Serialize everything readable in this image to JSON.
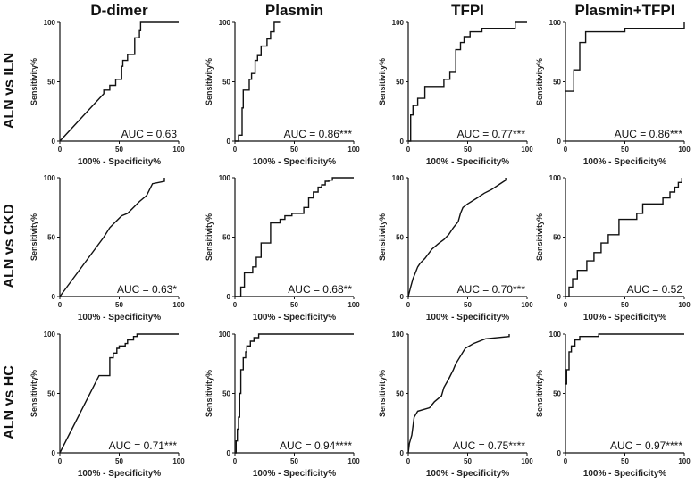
{
  "chart_data": [
    {
      "type": "line",
      "row": "ALN vs ILN",
      "column": "D-dimer",
      "xlabel": "100% - Specificity%",
      "ylabel": "Sensitivity%",
      "xlim": [
        0,
        100
      ],
      "ylim": [
        0,
        100
      ],
      "xticks": [
        "0",
        "50",
        "100"
      ],
      "yticks": [
        "0",
        "50",
        "100"
      ],
      "auc_label": "AUC = 0.63",
      "x": [
        0,
        37,
        37,
        42,
        42,
        47,
        47,
        52,
        52,
        53,
        53,
        57,
        57,
        63,
        63,
        67,
        67,
        68,
        68,
        100
      ],
      "y": [
        0,
        40,
        43,
        43,
        47,
        47,
        52,
        52,
        63,
        63,
        68,
        68,
        73,
        73,
        87,
        87,
        93,
        93,
        100,
        100
      ]
    },
    {
      "type": "line",
      "row": "ALN vs ILN",
      "column": "Plasmin",
      "xlabel": "100% - Specificity%",
      "ylabel": "Sensitivity%",
      "xlim": [
        0,
        100
      ],
      "ylim": [
        0,
        100
      ],
      "xticks": [
        "0",
        "50",
        "100"
      ],
      "yticks": [
        "0",
        "50",
        "100"
      ],
      "auc_label": "AUC = 0.86***",
      "x": [
        0,
        3,
        3,
        6,
        6,
        7,
        7,
        12,
        12,
        14,
        14,
        17,
        17,
        19,
        19,
        22,
        22,
        27,
        27,
        30,
        30,
        33,
        33,
        38
      ],
      "y": [
        0,
        0,
        5,
        5,
        28,
        28,
        43,
        43,
        52,
        52,
        57,
        57,
        68,
        68,
        72,
        72,
        80,
        80,
        86,
        86,
        92,
        92,
        100,
        100
      ]
    },
    {
      "type": "line",
      "row": "ALN vs ILN",
      "column": "TFPI",
      "xlabel": "100% - Specificity%",
      "ylabel": "Sensitivity%",
      "xlim": [
        0,
        100
      ],
      "ylim": [
        0,
        100
      ],
      "xticks": [
        "0",
        "50",
        "100"
      ],
      "yticks": [
        "0",
        "50",
        "100"
      ],
      "auc_label": "AUC = 0.77***",
      "x": [
        0,
        2,
        2,
        4,
        4,
        8,
        8,
        14,
        14,
        30,
        30,
        35,
        35,
        40,
        40,
        44,
        44,
        47,
        47,
        52,
        52,
        62,
        62,
        90,
        90,
        100
      ],
      "y": [
        0,
        0,
        22,
        22,
        30,
        30,
        36,
        36,
        46,
        46,
        52,
        52,
        58,
        58,
        77,
        77,
        83,
        83,
        88,
        88,
        92,
        92,
        95,
        95,
        100,
        100
      ]
    },
    {
      "type": "line",
      "row": "ALN vs ILN",
      "column": "Plasmin+TFPI",
      "xlabel": "100% - Specificity%",
      "ylabel": "Sensitivity%",
      "xlim": [
        0,
        100
      ],
      "ylim": [
        0,
        100
      ],
      "xticks": [
        "0",
        "50",
        "100"
      ],
      "yticks": [
        "0",
        "50",
        "100"
      ],
      "auc_label": "AUC = 0.86***",
      "x": [
        0,
        7,
        7,
        12,
        12,
        17,
        17,
        50,
        50,
        100,
        100
      ],
      "y": [
        42,
        42,
        60,
        60,
        83,
        83,
        92,
        92,
        95,
        95,
        100
      ]
    },
    {
      "type": "line",
      "row": "ALN vs CKD",
      "column": "D-dimer",
      "xlabel": "100% - Specificity%",
      "ylabel": "Sensitivity%",
      "xlim": [
        0,
        100
      ],
      "ylim": [
        0,
        100
      ],
      "xticks": [
        "0",
        "50",
        "100"
      ],
      "yticks": [
        "0",
        "50",
        "100"
      ],
      "auc_label": "AUC = 0.63*",
      "x": [
        0,
        37,
        37,
        42,
        42,
        47,
        47,
        52,
        52,
        57,
        57,
        62,
        62,
        67,
        67,
        73,
        73,
        78,
        78,
        88,
        88
      ],
      "y": [
        0,
        50,
        50,
        58,
        58,
        63,
        63,
        68,
        68,
        70,
        70,
        75,
        75,
        80,
        80,
        85,
        85,
        95,
        95,
        97,
        100
      ]
    },
    {
      "type": "line",
      "row": "ALN vs CKD",
      "column": "Plasmin",
      "xlabel": "100% - Specificity%",
      "ylabel": "Sensitivity%",
      "xlim": [
        0,
        100
      ],
      "ylim": [
        0,
        100
      ],
      "xticks": [
        "0",
        "50",
        "100"
      ],
      "yticks": [
        "0",
        "50",
        "100"
      ],
      "auc_label": "AUC = 0.68**",
      "x": [
        0,
        5,
        5,
        8,
        8,
        15,
        15,
        18,
        18,
        22,
        22,
        30,
        30,
        38,
        38,
        42,
        42,
        48,
        48,
        58,
        58,
        62,
        62,
        66,
        66,
        70,
        70,
        73,
        73,
        76,
        76,
        79,
        79,
        82,
        82,
        100
      ],
      "y": [
        0,
        0,
        8,
        8,
        20,
        20,
        25,
        25,
        33,
        33,
        45,
        45,
        62,
        62,
        65,
        65,
        68,
        68,
        70,
        70,
        75,
        75,
        83,
        83,
        88,
        88,
        92,
        92,
        94,
        94,
        97,
        97,
        98,
        98,
        100,
        100
      ]
    },
    {
      "type": "line",
      "row": "ALN vs CKD",
      "column": "TFPI",
      "xlabel": "100% - Specificity%",
      "ylabel": "Sensitivity%",
      "xlim": [
        0,
        100
      ],
      "ylim": [
        0,
        100
      ],
      "xticks": [
        "0",
        "50",
        "100"
      ],
      "yticks": [
        "0",
        "50",
        "100"
      ],
      "auc_label": "AUC = 0.70***",
      "x": [
        0,
        2,
        2,
        4,
        4,
        6,
        6,
        8,
        8,
        10,
        10,
        14,
        14,
        20,
        20,
        26,
        26,
        30,
        30,
        34,
        34,
        38,
        38,
        42,
        42,
        44,
        44,
        46,
        46,
        50,
        50,
        58,
        58,
        64,
        64,
        70,
        70,
        76,
        76,
        82,
        82
      ],
      "y": [
        0,
        8,
        8,
        15,
        15,
        20,
        20,
        25,
        25,
        28,
        28,
        32,
        32,
        40,
        40,
        45,
        45,
        48,
        48,
        52,
        52,
        58,
        58,
        63,
        63,
        70,
        70,
        75,
        75,
        78,
        78,
        83,
        83,
        87,
        87,
        90,
        90,
        94,
        94,
        98,
        100
      ]
    },
    {
      "type": "line",
      "row": "ALN vs CKD",
      "column": "Plasmin+TFPI",
      "xlabel": "100% - Specificity%",
      "ylabel": "Sensitivity%",
      "xlim": [
        0,
        100
      ],
      "ylim": [
        0,
        100
      ],
      "xticks": [
        "0",
        "50",
        "100"
      ],
      "yticks": [
        "0",
        "50",
        "100"
      ],
      "auc_label": "AUC = 0.52",
      "x": [
        0,
        3,
        3,
        6,
        6,
        10,
        10,
        18,
        18,
        24,
        24,
        30,
        30,
        36,
        36,
        45,
        45,
        60,
        60,
        65,
        65,
        82,
        82,
        88,
        88,
        92,
        92,
        95,
        95,
        98,
        98
      ],
      "y": [
        0,
        0,
        8,
        8,
        15,
        15,
        22,
        22,
        30,
        30,
        37,
        37,
        45,
        45,
        52,
        52,
        65,
        65,
        70,
        70,
        78,
        78,
        83,
        83,
        88,
        88,
        92,
        92,
        96,
        96,
        100
      ]
    },
    {
      "type": "line",
      "row": "ALN vs HC",
      "column": "D-dimer",
      "xlabel": "100% - Specificity%",
      "ylabel": "Sensitivity%",
      "xlim": [
        0,
        100
      ],
      "ylim": [
        0,
        100
      ],
      "xticks": [
        "0",
        "50",
        "100"
      ],
      "yticks": [
        "0",
        "50",
        "100"
      ],
      "auc_label": "AUC = 0.71***",
      "x": [
        0,
        33,
        33,
        42,
        42,
        45,
        45,
        48,
        48,
        50,
        50,
        55,
        55,
        57,
        57,
        62,
        62,
        65,
        65,
        100
      ],
      "y": [
        0,
        65,
        65,
        65,
        80,
        80,
        84,
        84,
        88,
        88,
        90,
        90,
        92,
        92,
        95,
        95,
        98,
        98,
        100,
        100
      ]
    },
    {
      "type": "line",
      "row": "ALN vs HC",
      "column": "Plasmin",
      "xlabel": "100% - Specificity%",
      "ylabel": "Sensitivity%",
      "xlim": [
        0,
        100
      ],
      "ylim": [
        0,
        100
      ],
      "xticks": [
        "0",
        "50",
        "100"
      ],
      "yticks": [
        "0",
        "50",
        "100"
      ],
      "auc_label": "AUC = 0.94****",
      "x": [
        0,
        1,
        1,
        2,
        2,
        3,
        3,
        4,
        4,
        5,
        5,
        7,
        7,
        9,
        9,
        10,
        10,
        13,
        13,
        16,
        16,
        20,
        20,
        100
      ],
      "y": [
        0,
        0,
        10,
        10,
        20,
        20,
        30,
        30,
        50,
        50,
        70,
        70,
        80,
        80,
        85,
        85,
        90,
        90,
        94,
        94,
        97,
        97,
        100,
        100
      ]
    },
    {
      "type": "line",
      "row": "ALN vs HC",
      "column": "TFPI",
      "xlabel": "100% - Specificity%",
      "ylabel": "Sensitivity%",
      "xlim": [
        0,
        100
      ],
      "ylim": [
        0,
        100
      ],
      "xticks": [
        "0",
        "50",
        "100"
      ],
      "yticks": [
        "0",
        "50",
        "100"
      ],
      "auc_label": "AUC = 0.75****",
      "x": [
        0,
        1,
        1,
        3,
        3,
        5,
        5,
        8,
        8,
        18,
        18,
        22,
        22,
        28,
        28,
        30,
        30,
        34,
        34,
        38,
        38,
        40,
        40,
        48,
        48,
        55,
        55,
        65,
        65,
        85,
        85
      ],
      "y": [
        0,
        8,
        8,
        15,
        15,
        30,
        30,
        35,
        35,
        38,
        38,
        43,
        43,
        48,
        48,
        55,
        55,
        62,
        62,
        70,
        70,
        75,
        75,
        88,
        88,
        92,
        92,
        96,
        96,
        98,
        100
      ]
    },
    {
      "type": "line",
      "row": "ALN vs HC",
      "column": "Plasmin+TFPI",
      "xlabel": "100% - Specificity%",
      "ylabel": "Sensitivity%",
      "xlim": [
        0,
        100
      ],
      "ylim": [
        0,
        100
      ],
      "xticks": [
        "0",
        "50",
        "100"
      ],
      "yticks": [
        "0",
        "50",
        "100"
      ],
      "auc_label": "AUC = 0.97****",
      "x": [
        0,
        1,
        1,
        3,
        3,
        5,
        5,
        8,
        8,
        12,
        12,
        28,
        28,
        100
      ],
      "y": [
        58,
        58,
        70,
        70,
        85,
        85,
        90,
        90,
        95,
        95,
        98,
        98,
        100,
        100
      ]
    }
  ],
  "columns": [
    "D-dimer",
    "Plasmin",
    "TFPI",
    "Plasmin+TFPI"
  ],
  "rows": [
    "ALN vs ILN",
    "ALN vs CKD",
    "ALN vs HC"
  ]
}
